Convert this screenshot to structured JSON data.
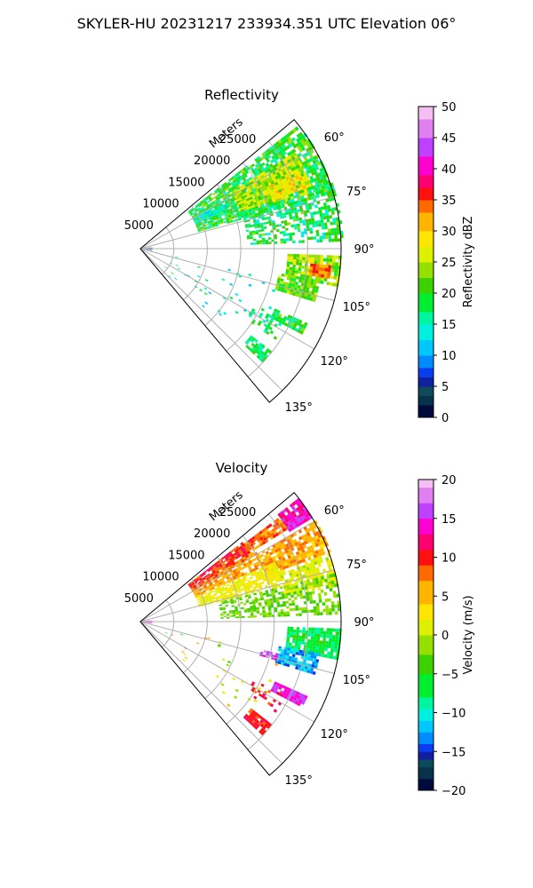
{
  "figure": {
    "title": "SKYLER-HU  20231217  233934.351 UTC Elevation 06°"
  },
  "chart_data": [
    {
      "type": "heatmap",
      "subtype": "polar-sector-ppi",
      "title": "Reflectivity",
      "range_axis_label": "Meters",
      "range_ticks": [
        "5000",
        "10000",
        "15000",
        "20000",
        "25000"
      ],
      "range_tick_values": [
        5000,
        10000,
        15000,
        20000,
        25000
      ],
      "range_max": 30000,
      "azimuth_range": [
        50,
        140
      ],
      "azimuth_ticks": [
        "60°",
        "75°",
        "90°",
        "105°",
        "120°",
        "135°"
      ],
      "azimuth_tick_values": [
        60,
        75,
        90,
        105,
        120,
        135
      ],
      "grid": true,
      "colorbar": {
        "label": "Reflectivity dBZ",
        "min": 0,
        "max": 50,
        "ticks": [
          "0",
          "5",
          "10",
          "15",
          "20",
          "25",
          "30",
          "35",
          "40",
          "45",
          "50"
        ],
        "tick_values": [
          0,
          5,
          10,
          15,
          20,
          25,
          30,
          35,
          40,
          45,
          50
        ],
        "colormap": [
          {
            "v": 0,
            "c": "#000a3c"
          },
          {
            "v": 2,
            "c": "#06324a"
          },
          {
            "v": 3.5,
            "c": "#0d4a5a"
          },
          {
            "v": 5,
            "c": "#1020a0"
          },
          {
            "v": 6.5,
            "c": "#0a3cf0"
          },
          {
            "v": 8,
            "c": "#008cff"
          },
          {
            "v": 10,
            "c": "#00c8ff"
          },
          {
            "v": 12.5,
            "c": "#00f0e0"
          },
          {
            "v": 15,
            "c": "#00f5a0"
          },
          {
            "v": 17,
            "c": "#00ee30"
          },
          {
            "v": 20,
            "c": "#3cd200"
          },
          {
            "v": 22.5,
            "c": "#96e000"
          },
          {
            "v": 25,
            "c": "#dcf000"
          },
          {
            "v": 27.5,
            "c": "#ffe600"
          },
          {
            "v": 30,
            "c": "#ffb400"
          },
          {
            "v": 33,
            "c": "#ff6a00"
          },
          {
            "v": 35,
            "c": "#ff1010"
          },
          {
            "v": 37,
            "c": "#ff0070"
          },
          {
            "v": 39,
            "c": "#ff00d0"
          },
          {
            "v": 42,
            "c": "#c040ff"
          },
          {
            "v": 45,
            "c": "#e080f0"
          },
          {
            "v": 48,
            "c": "#f4c0f4"
          },
          {
            "v": 50,
            "c": "#fff0ff"
          }
        ]
      },
      "echo_regions": [
        {
          "az": [
            52,
            74
          ],
          "r": [
            9000,
            30000
          ],
          "v": 19,
          "jitter": 5,
          "density": 0.8
        },
        {
          "az": [
            58,
            70
          ],
          "r": [
            16000,
            27000
          ],
          "v": 25,
          "jitter": 5,
          "density": 0.85
        },
        {
          "az": [
            64,
            72
          ],
          "r": [
            21000,
            26000
          ],
          "v": 29,
          "jitter": 4,
          "density": 0.8
        },
        {
          "az": [
            70,
            88
          ],
          "r": [
            16000,
            30000
          ],
          "v": 18,
          "jitter": 5,
          "density": 0.55
        },
        {
          "az": [
            60,
            66
          ],
          "r": [
            9000,
            14000
          ],
          "v": 14,
          "jitter": 3,
          "density": 0.7
        },
        {
          "az": [
            92,
            101
          ],
          "r": [
            22000,
            30000
          ],
          "v": 24,
          "jitter": 5,
          "density": 0.85
        },
        {
          "az": [
            95,
            99
          ],
          "r": [
            25500,
            28500
          ],
          "v": 33,
          "jitter": 3,
          "density": 0.9
        },
        {
          "az": [
            100,
            107
          ],
          "r": [
            21000,
            27000
          ],
          "v": 22,
          "jitter": 4,
          "density": 0.85
        },
        {
          "az": [
            114,
            118
          ],
          "r": [
            22000,
            27000
          ],
          "v": 19,
          "jitter": 4,
          "density": 0.8
        },
        {
          "az": [
            117,
            124
          ],
          "r": [
            19000,
            24000
          ],
          "v": 17,
          "jitter": 4,
          "density": 0.35
        },
        {
          "az": [
            128,
            133
          ],
          "r": [
            21000,
            25000
          ],
          "v": 18,
          "jitter": 4,
          "density": 0.8
        },
        {
          "az": [
            82,
            100
          ],
          "r": [
            0,
            1800
          ],
          "v": 6,
          "jitter": 4,
          "density": 0.6
        },
        {
          "az": [
            103,
            135
          ],
          "r": [
            4000,
            22000
          ],
          "v": 15,
          "jitter": 4,
          "density": 0.03
        }
      ]
    },
    {
      "type": "heatmap",
      "subtype": "polar-sector-ppi",
      "title": "Velocity",
      "range_axis_label": "Meters",
      "range_ticks": [
        "5000",
        "10000",
        "15000",
        "20000",
        "25000"
      ],
      "range_tick_values": [
        5000,
        10000,
        15000,
        20000,
        25000
      ],
      "range_max": 30000,
      "azimuth_range": [
        50,
        140
      ],
      "azimuth_ticks": [
        "60°",
        "75°",
        "90°",
        "105°",
        "120°",
        "135°"
      ],
      "azimuth_tick_values": [
        60,
        75,
        90,
        105,
        120,
        135
      ],
      "grid": true,
      "colorbar": {
        "label": "Velocity (m/s)",
        "min": -20,
        "max": 20,
        "ticks": [
          "−20",
          "−15",
          "−10",
          "−5",
          "0",
          "5",
          "10",
          "15",
          "20"
        ],
        "tick_values": [
          -20,
          -15,
          -10,
          -5,
          0,
          5,
          10,
          15,
          20
        ],
        "colormap": [
          {
            "v": -20,
            "c": "#000a3c"
          },
          {
            "v": -18.5,
            "c": "#06324a"
          },
          {
            "v": -17,
            "c": "#0d4a5a"
          },
          {
            "v": -16,
            "c": "#1020a0"
          },
          {
            "v": -15,
            "c": "#0a3cf0"
          },
          {
            "v": -14,
            "c": "#008cff"
          },
          {
            "v": -12.5,
            "c": "#00c8ff"
          },
          {
            "v": -11,
            "c": "#00f0e0"
          },
          {
            "v": -9.5,
            "c": "#00f5a0"
          },
          {
            "v": -8,
            "c": "#00ee30"
          },
          {
            "v": -5,
            "c": "#3cd200"
          },
          {
            "v": -2.5,
            "c": "#96e000"
          },
          {
            "v": 0,
            "c": "#dcf000"
          },
          {
            "v": 2,
            "c": "#ffe600"
          },
          {
            "v": 4,
            "c": "#ffb400"
          },
          {
            "v": 7,
            "c": "#ff6a00"
          },
          {
            "v": 9,
            "c": "#ff1010"
          },
          {
            "v": 11,
            "c": "#ff0070"
          },
          {
            "v": 13,
            "c": "#ff00d0"
          },
          {
            "v": 15,
            "c": "#c040ff"
          },
          {
            "v": 17,
            "c": "#e080f0"
          },
          {
            "v": 19,
            "c": "#f4c0f4"
          },
          {
            "v": 20,
            "c": "#fff0ff"
          }
        ]
      },
      "echo_regions": [
        {
          "az": [
            52,
            60
          ],
          "r": [
            9000,
            19000
          ],
          "v": 10,
          "jitter": 2,
          "density": 0.85
        },
        {
          "az": [
            53,
            58
          ],
          "r": [
            19000,
            26000
          ],
          "v": 8,
          "jitter": 2,
          "density": 0.85
        },
        {
          "az": [
            52,
            59
          ],
          "r": [
            26000,
            30000
          ],
          "v": 14,
          "jitter": 2,
          "density": 0.85
        },
        {
          "az": [
            58,
            66
          ],
          "r": [
            9000,
            20000
          ],
          "v": 6,
          "jitter": 2,
          "density": 0.8
        },
        {
          "az": [
            60,
            70
          ],
          "r": [
            20000,
            30000
          ],
          "v": 6,
          "jitter": 2.5,
          "density": 0.8
        },
        {
          "az": [
            66,
            76
          ],
          "r": [
            9000,
            22000
          ],
          "v": 2,
          "jitter": 2,
          "density": 0.75
        },
        {
          "az": [
            70,
            80
          ],
          "r": [
            22000,
            30000
          ],
          "v": 1.5,
          "jitter": 2,
          "density": 0.7
        },
        {
          "az": [
            76,
            88
          ],
          "r": [
            12000,
            30000
          ],
          "v": -2.5,
          "jitter": 2,
          "density": 0.55
        },
        {
          "az": [
            92,
            101
          ],
          "r": [
            22000,
            30000
          ],
          "v": -7,
          "jitter": 2.5,
          "density": 0.85
        },
        {
          "az": [
            100,
            107
          ],
          "r": [
            21000,
            27000
          ],
          "v": -12,
          "jitter": 2.5,
          "density": 0.85
        },
        {
          "az": [
            103,
            106
          ],
          "r": [
            18500,
            21000
          ],
          "v": 16,
          "jitter": 1.5,
          "density": 0.8
        },
        {
          "az": [
            114,
            118
          ],
          "r": [
            22000,
            27000
          ],
          "v": 15,
          "jitter": 1.5,
          "density": 0.85
        },
        {
          "az": [
            117,
            124
          ],
          "r": [
            19000,
            24000
          ],
          "v": 10,
          "jitter": 2,
          "density": 0.3
        },
        {
          "az": [
            128,
            133
          ],
          "r": [
            21000,
            25000
          ],
          "v": 10,
          "jitter": 1.5,
          "density": 0.85
        },
        {
          "az": [
            82,
            100
          ],
          "r": [
            0,
            1800
          ],
          "v": 15,
          "jitter": 3,
          "density": 0.6
        },
        {
          "az": [
            103,
            135
          ],
          "r": [
            4000,
            22000
          ],
          "v": 0,
          "jitter": 8,
          "density": 0.03
        }
      ]
    }
  ]
}
